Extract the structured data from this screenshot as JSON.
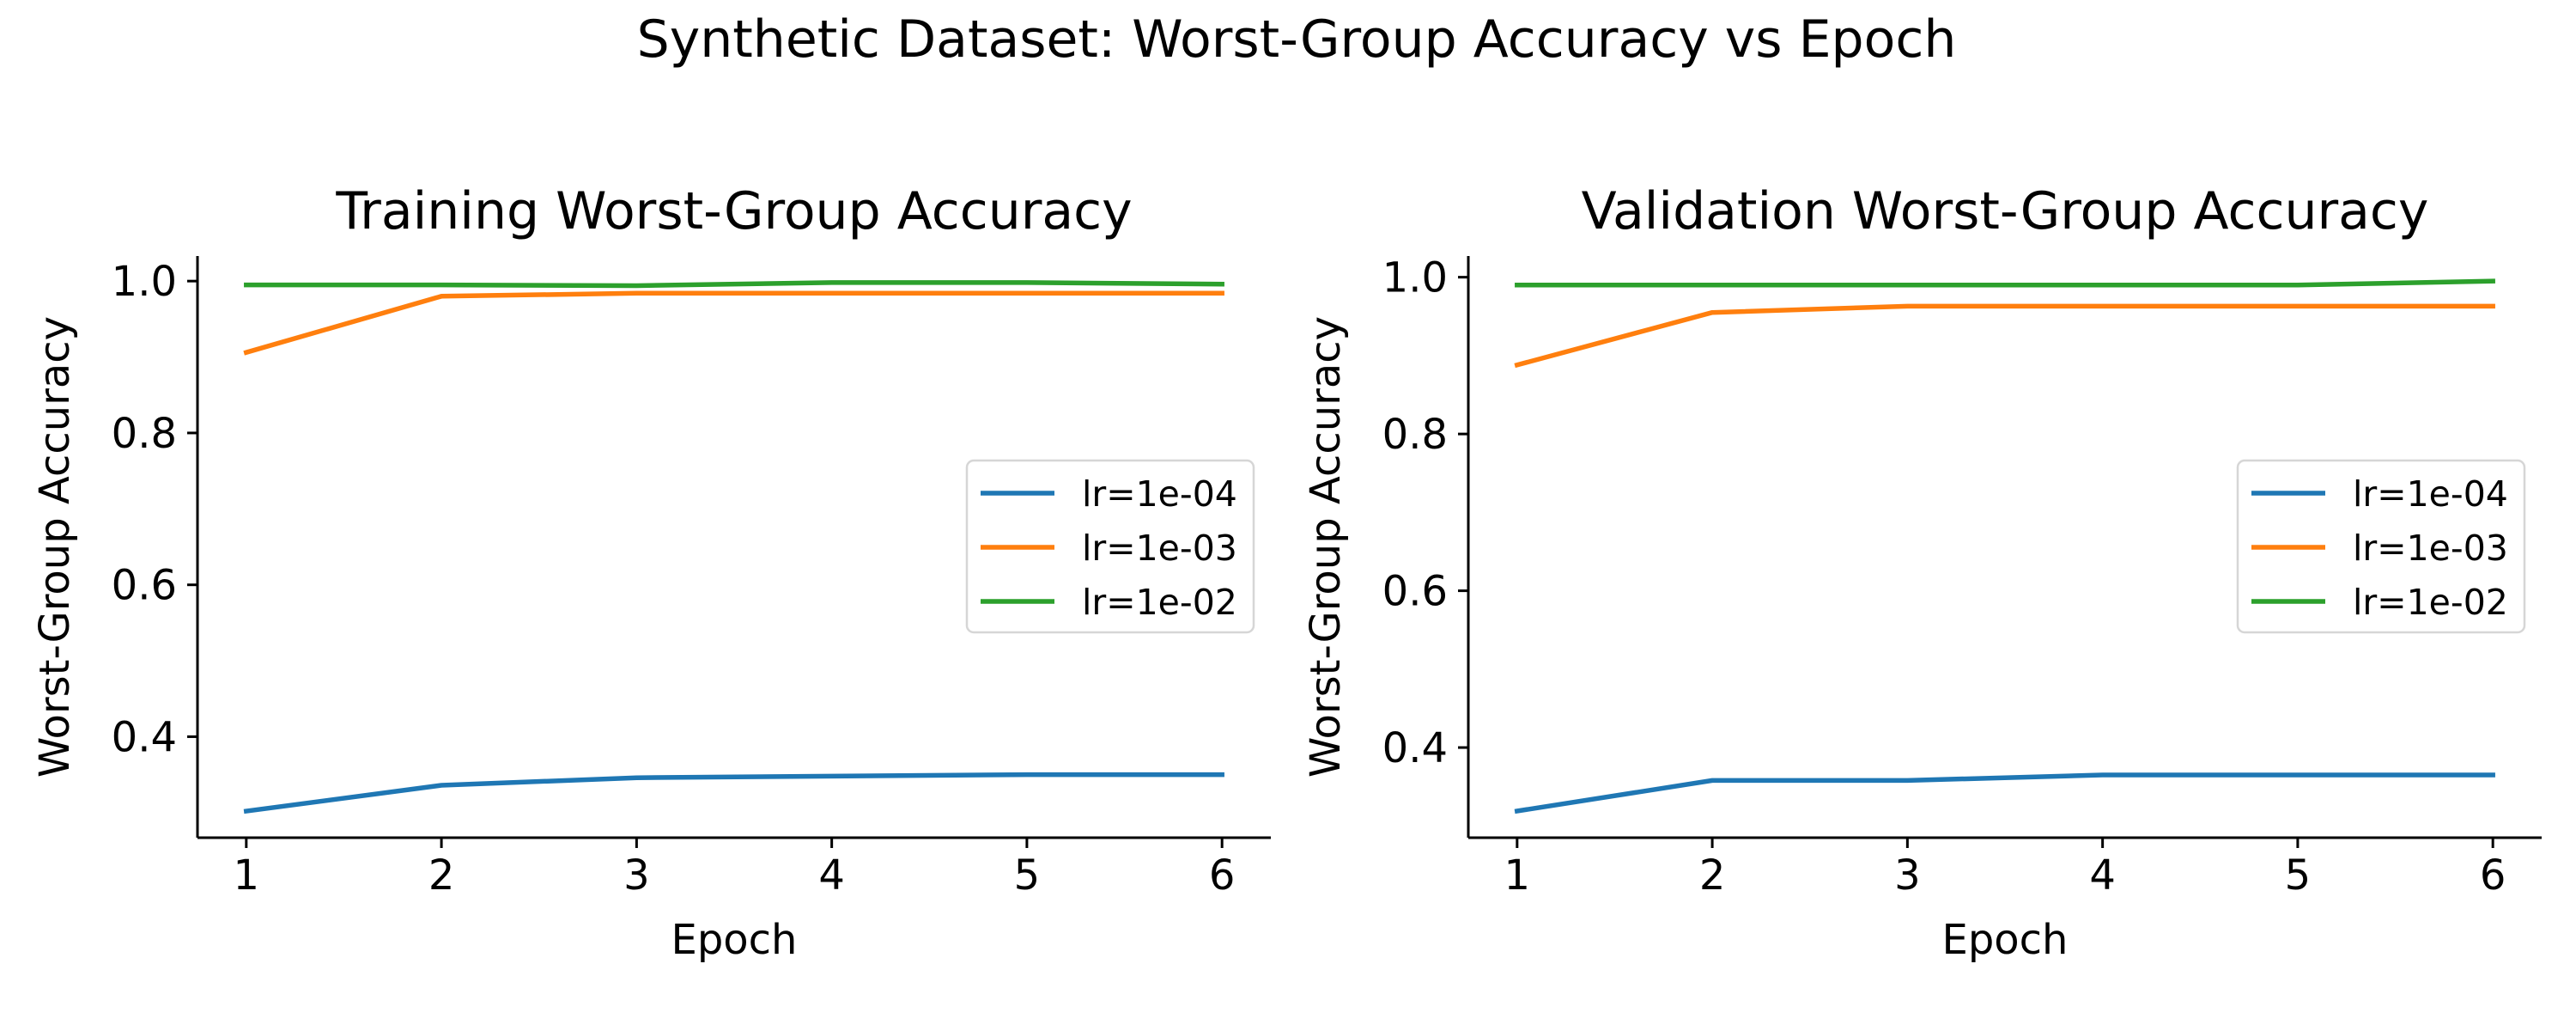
{
  "figure": {
    "suptitle": "Synthetic Dataset: Worst-Group Accuracy vs Epoch"
  },
  "chart_data": [
    {
      "type": "line",
      "title": "Training Worst-Group Accuracy",
      "xlabel": "Epoch",
      "ylabel": "Worst-Group Accuracy",
      "x": [
        1,
        2,
        3,
        4,
        5,
        6
      ],
      "xlim": [
        0.75,
        6.25
      ],
      "ylim": [
        0.267,
        1.033
      ],
      "yticks": [
        0.4,
        0.6,
        0.8,
        1.0
      ],
      "ytick_labels": [
        "0.4",
        "0.6",
        "0.8",
        "1.0"
      ],
      "xticks": [
        1,
        2,
        3,
        4,
        5,
        6
      ],
      "xtick_labels": [
        "1",
        "2",
        "3",
        "4",
        "5",
        "6"
      ],
      "grid": false,
      "legend_position": "center-right",
      "series": [
        {
          "name": "lr=1e-04",
          "color": "#1f77b4",
          "values": [
            0.302,
            0.336,
            0.346,
            0.348,
            0.35,
            0.35
          ]
        },
        {
          "name": "lr=1e-03",
          "color": "#ff7f0e",
          "values": [
            0.906,
            0.98,
            0.984,
            0.984,
            0.984,
            0.984
          ]
        },
        {
          "name": "lr=1e-02",
          "color": "#2ca02c",
          "values": [
            0.995,
            0.995,
            0.994,
            0.998,
            0.998,
            0.996
          ]
        }
      ]
    },
    {
      "type": "line",
      "title": "Validation Worst-Group Accuracy",
      "xlabel": "Epoch",
      "ylabel": "Worst-Group Accuracy",
      "x": [
        1,
        2,
        3,
        4,
        5,
        6
      ],
      "xlim": [
        0.75,
        6.25
      ],
      "ylim": [
        0.285,
        1.027
      ],
      "yticks": [
        0.4,
        0.6,
        0.8,
        1.0
      ],
      "ytick_labels": [
        "0.4",
        "0.6",
        "0.8",
        "1.0"
      ],
      "xticks": [
        1,
        2,
        3,
        4,
        5,
        6
      ],
      "xtick_labels": [
        "1",
        "2",
        "3",
        "4",
        "5",
        "6"
      ],
      "grid": false,
      "legend_position": "center-right",
      "series": [
        {
          "name": "lr=1e-04",
          "color": "#1f77b4",
          "values": [
            0.319,
            0.358,
            0.358,
            0.365,
            0.365,
            0.365
          ]
        },
        {
          "name": "lr=1e-03",
          "color": "#ff7f0e",
          "values": [
            0.888,
            0.955,
            0.963,
            0.963,
            0.963,
            0.963
          ]
        },
        {
          "name": "lr=1e-02",
          "color": "#2ca02c",
          "values": [
            0.99,
            0.99,
            0.99,
            0.99,
            0.99,
            0.995
          ]
        }
      ]
    }
  ]
}
